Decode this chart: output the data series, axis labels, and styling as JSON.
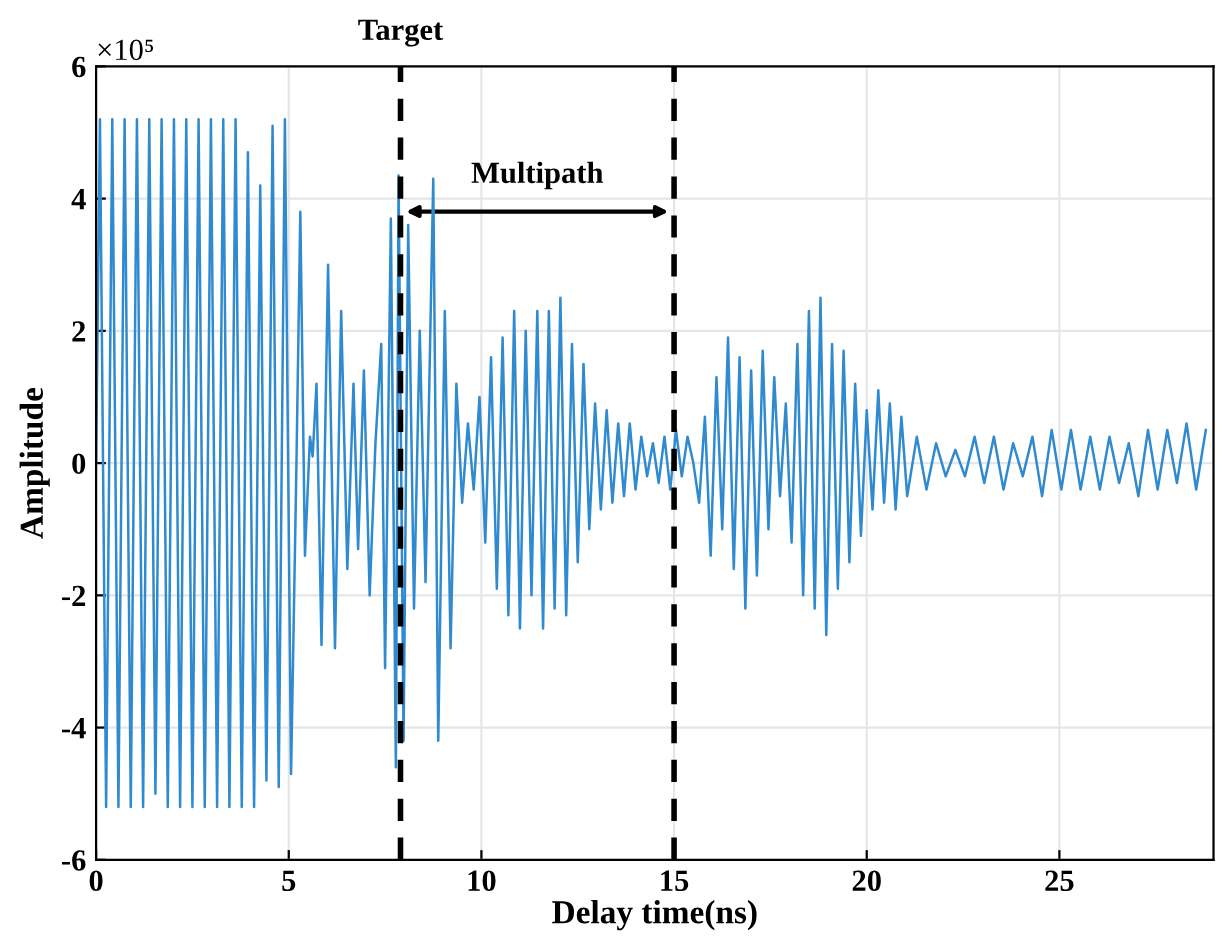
{
  "chart_data": {
    "type": "line",
    "xlabel": "Delay time(ns)",
    "ylabel": "Amplitude",
    "annotations": [
      "×10⁵",
      "Multipath"
    ],
    "x": [
      0,
      0.1,
      0.26,
      0.42,
      0.58,
      0.74,
      0.9,
      1.06,
      1.22,
      1.38,
      1.54,
      1.7,
      1.86,
      2.02,
      2.18,
      2.34,
      2.5,
      2.66,
      2.82,
      2.98,
      3.14,
      3.3,
      3.46,
      3.62,
      3.78,
      3.94,
      4.1,
      4.26,
      4.42,
      4.58,
      4.74,
      4.9,
      5.06,
      5.2,
      5.3,
      5.42,
      5.55,
      5.62,
      5.72,
      5.85,
      6.02,
      6.2,
      6.36,
      6.52,
      6.68,
      6.8,
      6.95,
      7.1,
      7.25,
      7.4,
      7.5,
      7.65,
      7.78,
      7.85,
      7.98,
      8.1,
      8.25,
      8.4,
      8.55,
      8.75,
      8.88,
      9.05,
      9.2,
      9.35,
      9.5,
      9.65,
      9.8,
      9.95,
      10.1,
      10.25,
      10.4,
      10.55,
      10.7,
      10.85,
      11.0,
      11.15,
      11.3,
      11.45,
      11.6,
      11.75,
      11.9,
      12.05,
      12.2,
      12.35,
      12.5,
      12.65,
      12.8,
      12.95,
      13.1,
      13.25,
      13.4,
      13.55,
      13.7,
      13.85,
      14.0,
      14.15,
      14.3,
      14.45,
      14.6,
      14.75,
      14.9,
      15.05,
      15.2,
      15.35,
      15.5,
      15.65,
      15.8,
      15.95,
      16.1,
      16.25,
      16.4,
      16.55,
      16.7,
      16.85,
      17.0,
      17.15,
      17.3,
      17.45,
      17.6,
      17.75,
      17.9,
      18.05,
      18.2,
      18.35,
      18.5,
      18.65,
      18.8,
      18.95,
      19.1,
      19.25,
      19.4,
      19.55,
      19.7,
      19.85,
      20.0,
      20.15,
      20.3,
      20.45,
      20.6,
      20.75,
      20.9,
      21.05,
      21.3,
      21.55,
      21.8,
      22.05,
      22.3,
      22.55,
      22.8,
      23.05,
      23.3,
      23.55,
      23.8,
      24.05,
      24.3,
      24.55,
      24.8,
      25.05,
      25.3,
      25.55,
      25.8,
      26.05,
      26.3,
      26.55,
      26.8,
      27.05,
      27.3,
      27.55,
      27.8,
      28.05,
      28.3,
      28.55,
      28.8
    ],
    "series": [
      {
        "color": "#2f8ad0",
        "values": [
          0,
          5.2,
          -5.2,
          5.2,
          -5.2,
          5.2,
          -5.2,
          5.2,
          -5.2,
          5.2,
          -5.0,
          5.2,
          -5.2,
          5.2,
          -5.2,
          5.2,
          -5.2,
          5.2,
          -5.2,
          5.2,
          -5.2,
          5.2,
          -5.2,
          5.2,
          -5.2,
          4.7,
          -5.2,
          4.2,
          -4.8,
          5.1,
          -4.9,
          5.2,
          -4.7,
          0,
          3.8,
          -1.4,
          0.4,
          0.1,
          1.2,
          -2.75,
          3.0,
          -2.8,
          2.3,
          -1.6,
          1.2,
          -1.3,
          1.4,
          -2.0,
          0.3,
          1.8,
          -3.1,
          3.7,
          -4.6,
          4.35,
          -4.2,
          3.6,
          -2.2,
          2.0,
          -1.8,
          4.3,
          -4.2,
          2.3,
          -2.8,
          1.2,
          -0.6,
          0.6,
          -0.4,
          1.0,
          -1.2,
          1.6,
          -1.9,
          1.9,
          -2.3,
          2.3,
          -2.5,
          2.0,
          -2.0,
          2.3,
          -2.5,
          2.3,
          -2.2,
          2.5,
          -2.3,
          1.8,
          -1.5,
          1.5,
          -1.0,
          0.9,
          -0.7,
          0.8,
          -0.6,
          0.6,
          -0.5,
          0.6,
          -0.4,
          0.4,
          -0.2,
          0.3,
          -0.3,
          0.4,
          -0.4,
          0.5,
          -0.2,
          0.4,
          0.0,
          -0.6,
          0.7,
          -1.4,
          1.3,
          -1.0,
          1.9,
          -1.6,
          1.6,
          -2.2,
          1.4,
          -1.7,
          1.7,
          -1.0,
          1.3,
          -0.5,
          0.9,
          -1.2,
          1.8,
          -2.0,
          2.3,
          -2.2,
          2.5,
          -2.6,
          1.8,
          -1.9,
          1.7,
          -1.5,
          1.2,
          -1.1,
          0.8,
          -0.7,
          1.1,
          -0.6,
          0.9,
          -0.7,
          0.7,
          -0.5,
          0.4,
          -0.4,
          0.3,
          -0.2,
          0.2,
          -0.2,
          0.4,
          -0.3,
          0.4,
          -0.4,
          0.3,
          -0.2,
          0.4,
          -0.5,
          0.5,
          -0.4,
          0.5,
          -0.4,
          0.4,
          -0.4,
          0.4,
          -0.3,
          0.3,
          -0.5,
          0.5,
          -0.4,
          0.5,
          -0.3,
          0.6,
          -0.4,
          0.5
        ]
      }
    ],
    "xlim": [
      0,
      29
    ],
    "xticks": [
      0,
      5,
      10,
      15,
      20,
      25
    ],
    "ylim": [
      -6,
      6
    ],
    "yticks": [
      -6,
      -4,
      -2,
      0,
      2,
      4,
      6
    ],
    "ref_lines": [
      {
        "axis": "x",
        "value": 7.9,
        "label": "Target",
        "color": "#000000",
        "line_style": "dashed"
      },
      {
        "axis": "x",
        "value": 15,
        "color": "#000000",
        "line_style": "dashed"
      }
    ],
    "grid": true,
    "line_style": "solid",
    "marker": "none"
  }
}
